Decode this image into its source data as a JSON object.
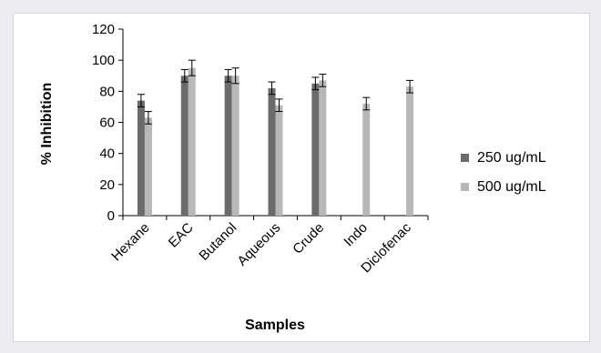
{
  "chart_data": {
    "type": "bar",
    "categories": [
      "Hexane",
      "EAC",
      "Butanol",
      "Aqueous",
      "Crude",
      "Indo",
      "Diclofenac"
    ],
    "series": [
      {
        "name": "250 ug/mL",
        "color": "#6b6b6b",
        "values": [
          74,
          90,
          90,
          82,
          85,
          null,
          null
        ],
        "errors": [
          4,
          4,
          4,
          4,
          4,
          null,
          null
        ]
      },
      {
        "name": "500 ug/mL",
        "color": "#b8b8b8",
        "values": [
          63,
          95,
          90,
          71,
          87,
          72,
          83
        ],
        "errors": [
          4,
          5,
          5,
          4,
          4,
          4,
          4
        ]
      }
    ],
    "xlabel": "Samples",
    "ylabel": "% Inhibition",
    "ylim": [
      0,
      120
    ],
    "yticks": [
      "0",
      "20",
      "40",
      "60",
      "80",
      "100",
      "120"
    ],
    "grid": false,
    "legend_position": "right"
  }
}
